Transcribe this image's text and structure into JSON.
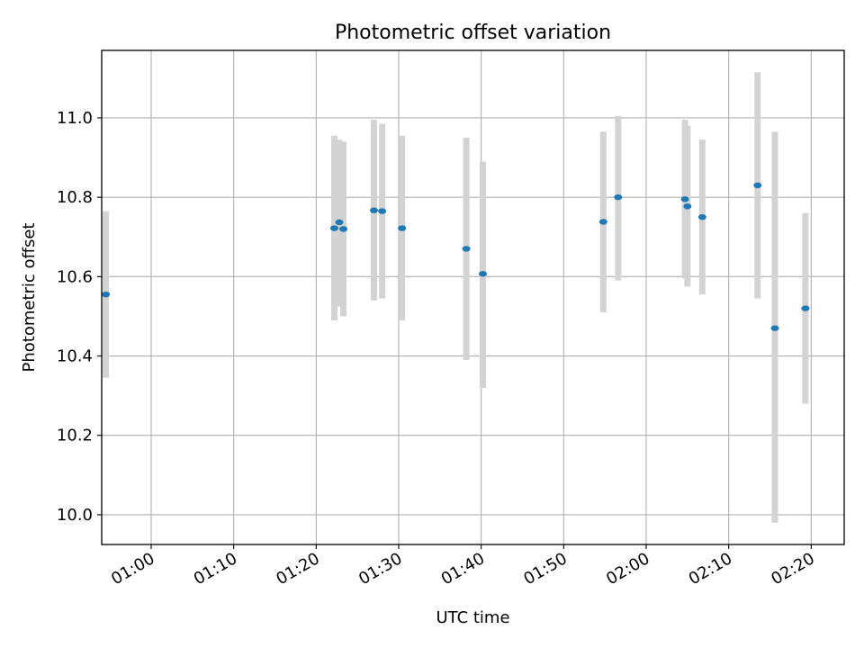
{
  "chart_data": {
    "type": "scatter",
    "title": "Photometric offset variation",
    "xlabel": "UTC time",
    "ylabel": "Photometric offset",
    "x_axis_kind": "time",
    "xlim": [
      "00:54:00",
      "02:24:00"
    ],
    "ylim": [
      9.925,
      11.17
    ],
    "grid": true,
    "x_ticks": [
      "01:00",
      "01:10",
      "01:20",
      "01:30",
      "01:40",
      "01:50",
      "02:00",
      "02:10",
      "02:20"
    ],
    "y_ticks": [
      "10.0",
      "10.2",
      "10.4",
      "10.6",
      "10.8",
      "11.0"
    ],
    "colors": {
      "marker": "#1f77b4",
      "errorbar": "#d3d3d3",
      "grid": "#b0b0b0",
      "axes": "#000000"
    },
    "points": [
      {
        "time": "00:54:30",
        "value": 10.555,
        "lower": 10.345,
        "upper": 10.765
      },
      {
        "time": "01:22:12",
        "value": 10.722,
        "lower": 10.49,
        "upper": 10.955
      },
      {
        "time": "01:22:48",
        "value": 10.737,
        "lower": 10.525,
        "upper": 10.945
      },
      {
        "time": "01:23:18",
        "value": 10.72,
        "lower": 10.5,
        "upper": 10.94
      },
      {
        "time": "01:27:00",
        "value": 10.767,
        "lower": 10.54,
        "upper": 10.995
      },
      {
        "time": "01:28:00",
        "value": 10.765,
        "lower": 10.545,
        "upper": 10.985
      },
      {
        "time": "01:30:24",
        "value": 10.722,
        "lower": 10.49,
        "upper": 10.955
      },
      {
        "time": "01:38:12",
        "value": 10.67,
        "lower": 10.39,
        "upper": 10.95
      },
      {
        "time": "01:40:12",
        "value": 10.607,
        "lower": 10.32,
        "upper": 10.89
      },
      {
        "time": "01:54:48",
        "value": 10.738,
        "lower": 10.51,
        "upper": 10.965
      },
      {
        "time": "01:56:36",
        "value": 10.8,
        "lower": 10.59,
        "upper": 11.005
      },
      {
        "time": "02:04:42",
        "value": 10.795,
        "lower": 10.595,
        "upper": 10.995
      },
      {
        "time": "02:05:00",
        "value": 10.777,
        "lower": 10.575,
        "upper": 10.98
      },
      {
        "time": "02:06:48",
        "value": 10.75,
        "lower": 10.555,
        "upper": 10.945
      },
      {
        "time": "02:13:30",
        "value": 10.83,
        "lower": 10.545,
        "upper": 11.115
      },
      {
        "time": "02:15:36",
        "value": 10.47,
        "lower": 9.98,
        "upper": 10.965
      },
      {
        "time": "02:19:18",
        "value": 10.52,
        "lower": 10.28,
        "upper": 10.76
      }
    ]
  }
}
